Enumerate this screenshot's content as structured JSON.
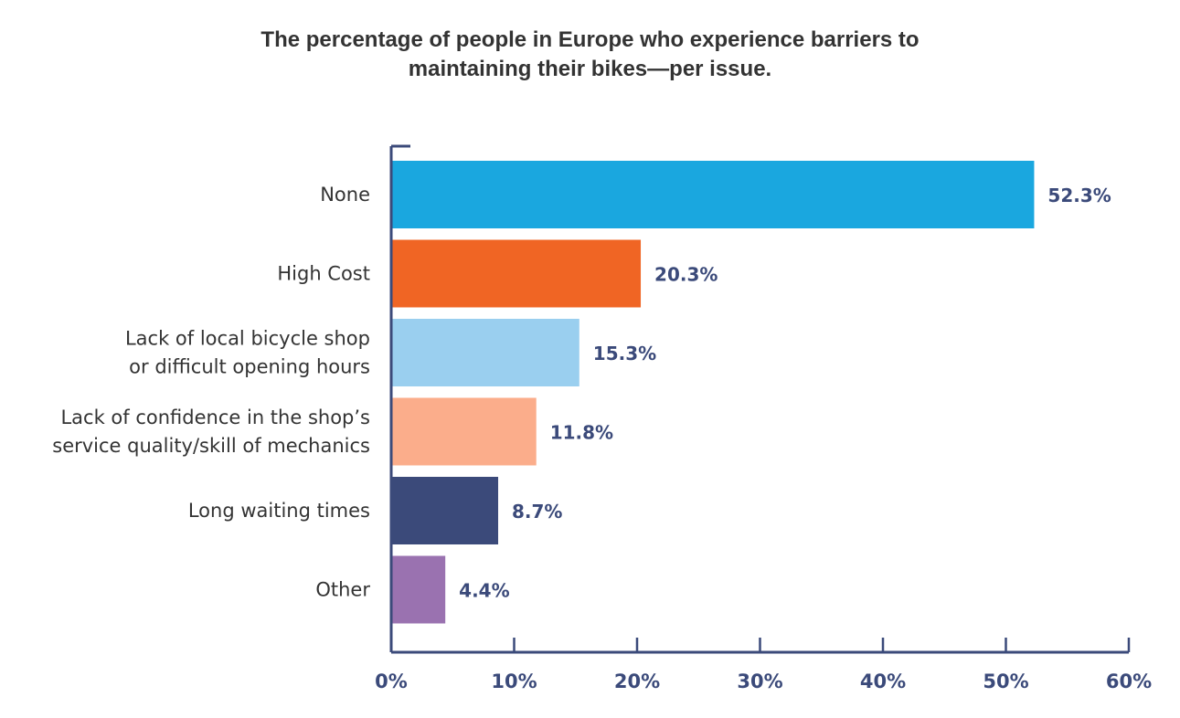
{
  "chart_data": {
    "type": "bar",
    "orientation": "horizontal",
    "title_lines": [
      "The percentage of people in Europe who experience barriers to",
      "maintaining their bikes—per issue."
    ],
    "categories": [
      [
        "None"
      ],
      [
        "High Cost"
      ],
      [
        "Lack of local bicycle shop",
        "or difficult opening hours"
      ],
      [
        "Lack of confidence in the shop’s",
        "service quality/skill of mechanics"
      ],
      [
        "Long waiting times"
      ],
      [
        "Other"
      ]
    ],
    "values": [
      52.3,
      20.3,
      15.3,
      11.8,
      8.7,
      4.4
    ],
    "value_labels": [
      "52.3%",
      "20.3%",
      "15.3%",
      "11.8%",
      "8.7%",
      "4.4%"
    ],
    "colors": [
      "#1aa7df",
      "#f06524",
      "#9acfef",
      "#fbad8b",
      "#3b4a7a",
      "#9a72b0"
    ],
    "xlim": [
      0,
      60
    ],
    "xticks": [
      0,
      10,
      20,
      30,
      40,
      50,
      60
    ],
    "xtick_labels": [
      "0%",
      "10%",
      "20%",
      "30%",
      "40%",
      "50%",
      "60%"
    ],
    "xlabel": "",
    "ylabel": "",
    "grid": false,
    "legend": "none",
    "axis_color": "#3b4a7a"
  }
}
